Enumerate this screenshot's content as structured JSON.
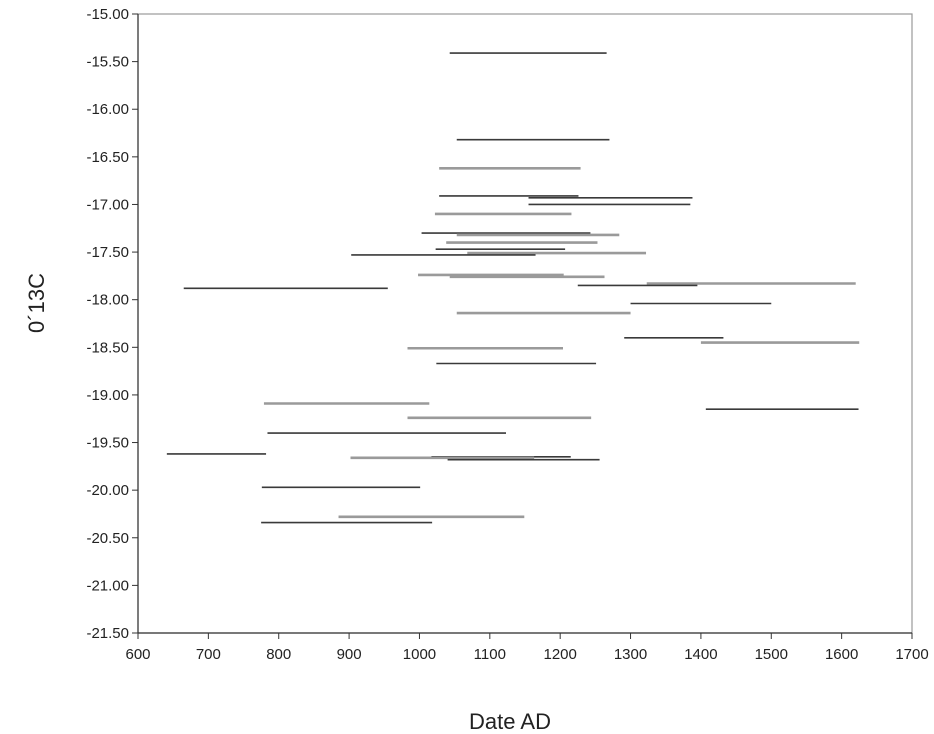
{
  "chart_data": {
    "type": "range-bar",
    "title": "",
    "xlabel": "Date AD",
    "ylabel": "0´13C",
    "xlim": [
      600,
      1700
    ],
    "ylim": [
      -21.5,
      -15.0
    ],
    "x_ticks": [
      600,
      700,
      800,
      900,
      1000,
      1100,
      1200,
      1300,
      1400,
      1500,
      1600,
      1700
    ],
    "y_ticks": [
      "-15.00",
      "-15.50",
      "-16.00",
      "-16.50",
      "-17.00",
      "-17.50",
      "-18.00",
      "-18.50",
      "-19.00",
      "-19.50",
      "-20.00",
      "-20.50",
      "-21.00",
      "-21.50"
    ],
    "grid": false,
    "legend": "none",
    "colors": {
      "dark": "#3a3a3a",
      "light": "#9a9a9a",
      "frame": "#9a9a9a"
    },
    "ranges": [
      {
        "y": -15.41,
        "x_start": 1043,
        "x_end": 1266,
        "shade": "dark"
      },
      {
        "y": -16.32,
        "x_start": 1053,
        "x_end": 1270,
        "shade": "dark"
      },
      {
        "y": -16.62,
        "x_start": 1028,
        "x_end": 1229,
        "shade": "light"
      },
      {
        "y": -16.91,
        "x_start": 1028,
        "x_end": 1226,
        "shade": "dark"
      },
      {
        "y": -16.93,
        "x_start": 1155,
        "x_end": 1388,
        "shade": "dark"
      },
      {
        "y": -17.0,
        "x_start": 1155,
        "x_end": 1385,
        "shade": "dark"
      },
      {
        "y": -17.1,
        "x_start": 1022,
        "x_end": 1216,
        "shade": "light"
      },
      {
        "y": -17.3,
        "x_start": 1003,
        "x_end": 1243,
        "shade": "dark"
      },
      {
        "y": -17.32,
        "x_start": 1053,
        "x_end": 1284,
        "shade": "light"
      },
      {
        "y": -17.4,
        "x_start": 1038,
        "x_end": 1253,
        "shade": "light"
      },
      {
        "y": -17.47,
        "x_start": 1023,
        "x_end": 1207,
        "shade": "dark"
      },
      {
        "y": -17.51,
        "x_start": 1068,
        "x_end": 1322,
        "shade": "light"
      },
      {
        "y": -17.53,
        "x_start": 903,
        "x_end": 1165,
        "shade": "dark"
      },
      {
        "y": -17.74,
        "x_start": 998,
        "x_end": 1205,
        "shade": "light"
      },
      {
        "y": -17.76,
        "x_start": 1043,
        "x_end": 1263,
        "shade": "light"
      },
      {
        "y": -17.83,
        "x_start": 1323,
        "x_end": 1620,
        "shade": "light"
      },
      {
        "y": -17.85,
        "x_start": 1225,
        "x_end": 1395,
        "shade": "dark"
      },
      {
        "y": -17.88,
        "x_start": 665,
        "x_end": 955,
        "shade": "dark"
      },
      {
        "y": -18.04,
        "x_start": 1300,
        "x_end": 1500,
        "shade": "dark"
      },
      {
        "y": -18.14,
        "x_start": 1053,
        "x_end": 1300,
        "shade": "light"
      },
      {
        "y": -18.4,
        "x_start": 1291,
        "x_end": 1432,
        "shade": "dark"
      },
      {
        "y": -18.45,
        "x_start": 1400,
        "x_end": 1625,
        "shade": "light"
      },
      {
        "y": -18.51,
        "x_start": 983,
        "x_end": 1204,
        "shade": "light"
      },
      {
        "y": -18.67,
        "x_start": 1024,
        "x_end": 1251,
        "shade": "dark"
      },
      {
        "y": -19.09,
        "x_start": 779,
        "x_end": 1014,
        "shade": "light"
      },
      {
        "y": -19.15,
        "x_start": 1407,
        "x_end": 1624,
        "shade": "dark"
      },
      {
        "y": -19.24,
        "x_start": 983,
        "x_end": 1244,
        "shade": "light"
      },
      {
        "y": -19.4,
        "x_start": 784,
        "x_end": 1123,
        "shade": "dark"
      },
      {
        "y": -19.62,
        "x_start": 641,
        "x_end": 782,
        "shade": "dark"
      },
      {
        "y": -19.65,
        "x_start": 1017,
        "x_end": 1215,
        "shade": "dark"
      },
      {
        "y": -19.66,
        "x_start": 902,
        "x_end": 1163,
        "shade": "light"
      },
      {
        "y": -19.68,
        "x_start": 1040,
        "x_end": 1256,
        "shade": "dark"
      },
      {
        "y": -19.97,
        "x_start": 776,
        "x_end": 1001,
        "shade": "dark"
      },
      {
        "y": -20.28,
        "x_start": 885,
        "x_end": 1149,
        "shade": "light"
      },
      {
        "y": -20.34,
        "x_start": 775,
        "x_end": 1018,
        "shade": "dark"
      }
    ]
  }
}
